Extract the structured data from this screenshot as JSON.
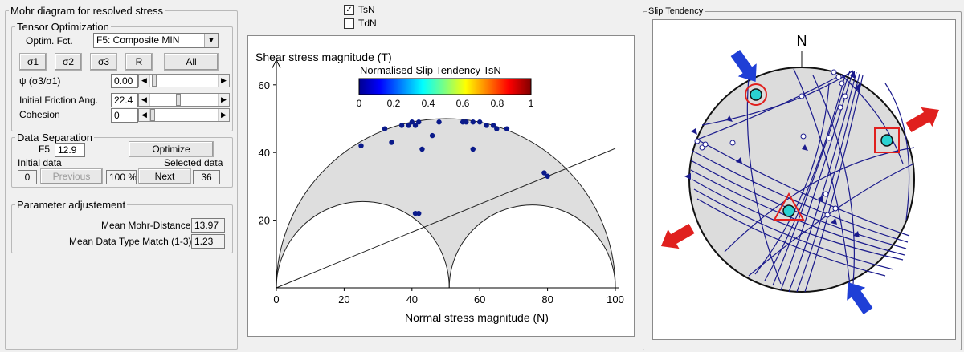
{
  "left": {
    "title": "Mohr diagram for resolved stress",
    "tensor": {
      "legend": "Tensor Optimization",
      "optim_label": "Optim. Fct.",
      "optim_value": "F5: Composite MIN",
      "buttons": [
        "σ1",
        "σ2",
        "σ3",
        "R",
        "All"
      ],
      "psi_label": "ψ (σ3/σ1)",
      "psi_value": "0.00",
      "friction_label": "Initial Friction Ang.",
      "friction_value": "22.4",
      "cohesion_label": "Cohesion",
      "cohesion_value": "0"
    },
    "separation": {
      "legend": "Data Separation",
      "f5_label": "F5",
      "f5_value": "12.9",
      "optimize_label": "Optimize",
      "initial_label": "Initial data",
      "selected_label": "Selected data",
      "initial_value": "0",
      "previous_label": "Previous",
      "percent_value": "100 %",
      "next_label": "Next",
      "selected_value": "36"
    },
    "params": {
      "legend": "Parameter adjustement",
      "mohr_label": "Mean Mohr-Distance",
      "mohr_value": "13.97",
      "match_label": "Mean Data Type Match (1-3)",
      "match_value": "1.23"
    }
  },
  "middle": {
    "tsn_label": "TsN",
    "tsn_checked": "✓",
    "tdn_label": "TdN",
    "colorbar_title": "Normalised Slip Tendency TsN",
    "colorbar_ticks": [
      "0",
      "0.2",
      "0.4",
      "0.6",
      "0.8",
      "1"
    ]
  },
  "chart_data": {
    "type": "scatter",
    "title": "",
    "xlabel": "Normal stress magnitude (N)",
    "ylabel": "Shear stress magnitude (T)",
    "xlim": [
      0,
      100
    ],
    "ylim": [
      0,
      65
    ],
    "xticks": [
      "0",
      "20",
      "40",
      "60",
      "80",
      "100"
    ],
    "yticks": [
      "20",
      "40",
      "60"
    ],
    "mohr_circles": [
      {
        "sigma_min": 0,
        "sigma_max": 100
      },
      {
        "sigma_min": 0,
        "sigma_max": 51
      },
      {
        "sigma_min": 51,
        "sigma_max": 100
      }
    ],
    "failure_line": {
      "cohesion": 0,
      "friction_deg": 22.4
    },
    "points": [
      {
        "x": 25,
        "y": 42
      },
      {
        "x": 32,
        "y": 47
      },
      {
        "x": 34,
        "y": 43
      },
      {
        "x": 37,
        "y": 48
      },
      {
        "x": 39,
        "y": 48
      },
      {
        "x": 40,
        "y": 49
      },
      {
        "x": 41,
        "y": 48
      },
      {
        "x": 42,
        "y": 49
      },
      {
        "x": 43,
        "y": 41
      },
      {
        "x": 46,
        "y": 45
      },
      {
        "x": 48,
        "y": 49
      },
      {
        "x": 55,
        "y": 49
      },
      {
        "x": 56,
        "y": 49
      },
      {
        "x": 58,
        "y": 49
      },
      {
        "x": 60,
        "y": 49
      },
      {
        "x": 62,
        "y": 48
      },
      {
        "x": 64,
        "y": 48
      },
      {
        "x": 65,
        "y": 47
      },
      {
        "x": 68,
        "y": 47
      },
      {
        "x": 58,
        "y": 41
      },
      {
        "x": 79,
        "y": 34
      },
      {
        "x": 80,
        "y": 33
      },
      {
        "x": 41,
        "y": 22
      },
      {
        "x": 42,
        "y": 22
      }
    ]
  },
  "right": {
    "title": "Slip Tendency",
    "north_label": "N",
    "colors": {
      "compression": "#1f3fd6",
      "extension": "#e0201e",
      "pole": "#2ad1d1",
      "plane": "#1a1a8c"
    }
  }
}
